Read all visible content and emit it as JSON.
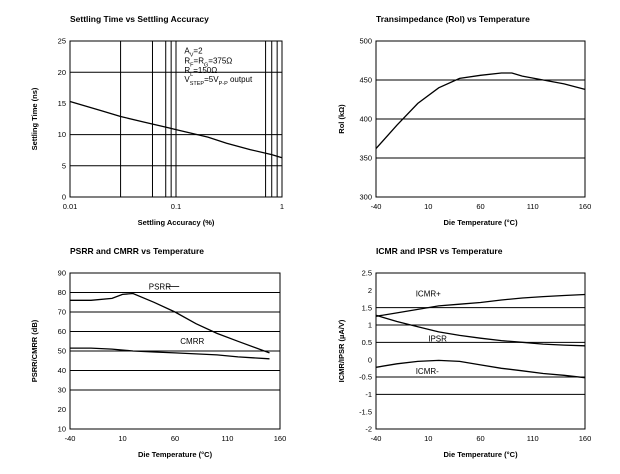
{
  "chart_data": [
    {
      "type": "line",
      "title": "Settling Time vs Settling Accuracy",
      "xlabel": "Settling Accuracy (%)",
      "ylabel": "Settling Time (ns)",
      "xscale": "log",
      "xlim": [
        0.01,
        1
      ],
      "ylim": [
        0,
        25
      ],
      "xticks": [
        {
          "v": 0.01,
          "label": "0.01"
        },
        {
          "v": 0.1,
          "label": "0.1"
        },
        {
          "v": 1,
          "label": "1"
        }
      ],
      "yticks": [
        {
          "v": 0,
          "label": "0"
        },
        {
          "v": 5,
          "label": "5"
        },
        {
          "v": 10,
          "label": "10"
        },
        {
          "v": 15,
          "label": "15"
        },
        {
          "v": 20,
          "label": "20"
        },
        {
          "v": 25,
          "label": "25"
        }
      ],
      "xgrid": [
        0.03,
        0.06,
        0.08,
        0.09,
        0.1,
        0.7,
        0.8,
        0.9
      ],
      "ygrid": [
        5,
        10,
        20
      ],
      "series": [
        {
          "name": "",
          "x": [
            0.01,
            0.02,
            0.03,
            0.05,
            0.08,
            0.1,
            0.2,
            0.3,
            0.5,
            0.8,
            1
          ],
          "y": [
            15.3,
            13.8,
            12.9,
            12.0,
            11.2,
            10.8,
            9.6,
            8.6,
            7.6,
            6.8,
            6.3
          ]
        }
      ],
      "annotations": [
        {
          "label": "AV=2",
          "parts": [
            [
              "A",
              ""
            ],
            [
              "V",
              "sub"
            ],
            [
              "=2",
              ""
            ]
          ],
          "at": [
            0.12,
            23.0
          ]
        },
        {
          "label": "RF=RG=375Ω",
          "parts": [
            [
              "R",
              ""
            ],
            [
              "F",
              "sub"
            ],
            [
              "=R",
              ""
            ],
            [
              "G",
              "sub"
            ],
            [
              "=375Ω",
              ""
            ]
          ],
          "at": [
            0.12,
            21.4
          ]
        },
        {
          "label": "RL=150Ω",
          "parts": [
            [
              "R",
              ""
            ],
            [
              "L",
              "sub"
            ],
            [
              "=150Ω",
              ""
            ]
          ],
          "at": [
            0.12,
            19.9
          ]
        },
        {
          "label": "VSTEP=5VP-P output",
          "parts": [
            [
              "V",
              ""
            ],
            [
              "STEP",
              "sub"
            ],
            [
              "=5V",
              ""
            ],
            [
              "P-P",
              "sub"
            ],
            [
              " output",
              ""
            ]
          ],
          "at": [
            0.12,
            18.4
          ]
        }
      ]
    },
    {
      "type": "line",
      "title": "Transimpedance (Rol) vs Temperature",
      "xlabel": "Die Temperature (°C)",
      "ylabel": "Rol (kΩ)",
      "xlim": [
        -40,
        160
      ],
      "ylim": [
        300,
        500
      ],
      "xticks": [
        {
          "v": -40,
          "label": "-40"
        },
        {
          "v": 10,
          "label": "10"
        },
        {
          "v": 60,
          "label": "60"
        },
        {
          "v": 110,
          "label": "110"
        },
        {
          "v": 160,
          "label": "160"
        }
      ],
      "yticks": [
        {
          "v": 300,
          "label": "300"
        },
        {
          "v": 350,
          "label": "350"
        },
        {
          "v": 400,
          "label": "400"
        },
        {
          "v": 450,
          "label": "450"
        },
        {
          "v": 500,
          "label": "500"
        }
      ],
      "xgrid": [],
      "ygrid": [
        350,
        400,
        450
      ],
      "series": [
        {
          "name": "",
          "x": [
            -40,
            -20,
            0,
            20,
            40,
            60,
            80,
            90,
            100,
            120,
            140,
            160
          ],
          "y": [
            362,
            392,
            420,
            440,
            452,
            456,
            459,
            459,
            455,
            450,
            445,
            438
          ]
        }
      ],
      "annotations": []
    },
    {
      "type": "line",
      "title": "PSRR and CMRR vs Temperature",
      "xlabel": "Die Temperature (°C)",
      "ylabel": "PSRR/CMRR (dB)",
      "xlim": [
        -40,
        160
      ],
      "ylim": [
        10,
        90
      ],
      "xticks": [
        {
          "v": -40,
          "label": "-40"
        },
        {
          "v": 10,
          "label": "10"
        },
        {
          "v": 60,
          "label": "60"
        },
        {
          "v": 110,
          "label": "110"
        },
        {
          "v": 160,
          "label": "160"
        }
      ],
      "yticks": [
        {
          "v": 10,
          "label": "10"
        },
        {
          "v": 20,
          "label": "20"
        },
        {
          "v": 30,
          "label": "30"
        },
        {
          "v": 40,
          "label": "40"
        },
        {
          "v": 50,
          "label": "50"
        },
        {
          "v": 60,
          "label": "60"
        },
        {
          "v": 70,
          "label": "70"
        },
        {
          "v": 80,
          "label": "80"
        },
        {
          "v": 90,
          "label": "90"
        }
      ],
      "xgrid": [],
      "ygrid": [
        30,
        40,
        50,
        60,
        70,
        80
      ],
      "series": [
        {
          "name": "PSRR",
          "x": [
            -40,
            -20,
            0,
            10,
            20,
            40,
            60,
            80,
            100,
            120,
            150
          ],
          "y": [
            76,
            76,
            77,
            79,
            79.5,
            75,
            70,
            64,
            59,
            55,
            49
          ]
        },
        {
          "name": "CMRR",
          "x": [
            -40,
            -20,
            0,
            20,
            40,
            60,
            80,
            100,
            120,
            150
          ],
          "y": [
            51.5,
            51.5,
            51,
            50,
            49.5,
            49,
            48.5,
            48,
            47,
            46
          ]
        }
      ],
      "annotations": [
        {
          "label": "PSRR",
          "parts": [
            [
              "PSRR",
              ""
            ]
          ],
          "at": [
            35,
            81.5
          ],
          "leader": [
            [
              52,
              81.5
            ],
            [
              64,
              81.5
            ]
          ]
        },
        {
          "label": "CMRR",
          "parts": [
            [
              "CMRR",
              ""
            ]
          ],
          "at": [
            65,
            53.5
          ],
          "leader": []
        }
      ]
    },
    {
      "type": "line",
      "title": "ICMR and IPSR vs Temperature",
      "xlabel": "Die Temperature (°C)",
      "ylabel": "ICMR/IPSR (µA/V)",
      "xlim": [
        -40,
        160
      ],
      "ylim": [
        -2,
        2.5
      ],
      "xticks": [
        {
          "v": -40,
          "label": "-40"
        },
        {
          "v": 10,
          "label": "10"
        },
        {
          "v": 60,
          "label": "60"
        },
        {
          "v": 110,
          "label": "110"
        },
        {
          "v": 160,
          "label": "160"
        }
      ],
      "yticks": [
        {
          "v": -2,
          "label": "-2"
        },
        {
          "v": -1.5,
          "label": "-1.5"
        },
        {
          "v": -1,
          "label": "-1"
        },
        {
          "v": -0.5,
          "label": "-0.5"
        },
        {
          "v": 0,
          "label": "0"
        },
        {
          "v": 0.5,
          "label": "0.5"
        },
        {
          "v": 1,
          "label": "1"
        },
        {
          "v": 1.5,
          "label": "1.5"
        },
        {
          "v": 2,
          "label": "2"
        },
        {
          "v": 2.5,
          "label": "2.5"
        }
      ],
      "xgrid": [],
      "ygrid": [
        -1,
        -0.5,
        0.5,
        1,
        1.5
      ],
      "series": [
        {
          "name": "ICMR+",
          "x": [
            -40,
            -20,
            0,
            20,
            40,
            60,
            80,
            100,
            120,
            140,
            160
          ],
          "y": [
            1.25,
            1.35,
            1.45,
            1.55,
            1.6,
            1.65,
            1.72,
            1.78,
            1.82,
            1.85,
            1.88
          ]
        },
        {
          "name": "IPSR",
          "x": [
            -40,
            -20,
            0,
            20,
            40,
            60,
            80,
            100,
            120,
            140,
            160
          ],
          "y": [
            1.28,
            1.1,
            0.95,
            0.8,
            0.7,
            0.62,
            0.55,
            0.5,
            0.45,
            0.42,
            0.4
          ]
        },
        {
          "name": "ICMR-",
          "x": [
            -40,
            -20,
            0,
            20,
            40,
            60,
            80,
            100,
            120,
            140,
            160
          ],
          "y": [
            -0.22,
            -0.12,
            -0.05,
            -0.02,
            -0.05,
            -0.15,
            -0.25,
            -0.32,
            -0.4,
            -0.45,
            -0.52
          ]
        }
      ],
      "annotations": [
        {
          "label": "ICMR+",
          "parts": [
            [
              "ICMR+",
              ""
            ]
          ],
          "at": [
            -2,
            1.82
          ],
          "leader": []
        },
        {
          "label": "IPSR",
          "parts": [
            [
              "IPSR",
              ""
            ]
          ],
          "at": [
            10,
            0.52
          ],
          "leader": []
        },
        {
          "label": "ICMR-",
          "parts": [
            [
              "ICMR-",
              ""
            ]
          ],
          "at": [
            -2,
            -0.42
          ],
          "leader": []
        }
      ]
    }
  ]
}
